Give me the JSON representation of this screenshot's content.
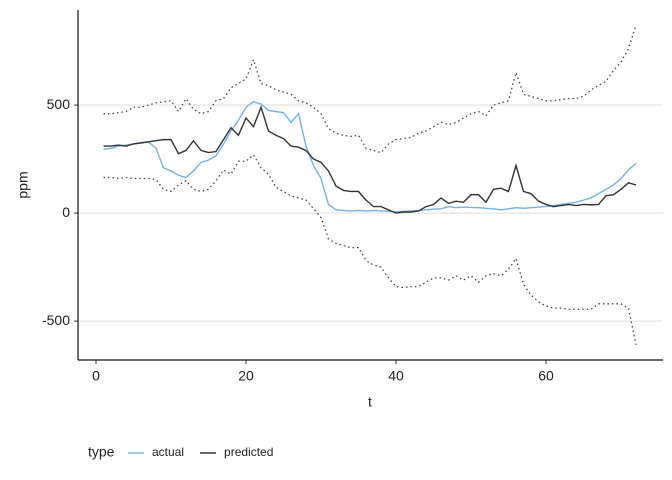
{
  "chart_data": {
    "type": "line",
    "x_label": "t",
    "y_label": "ppm",
    "legend_title": "type",
    "x": [
      1,
      2,
      3,
      4,
      5,
      6,
      7,
      8,
      9,
      10,
      11,
      12,
      13,
      14,
      15,
      16,
      17,
      18,
      19,
      20,
      21,
      22,
      23,
      24,
      25,
      26,
      27,
      28,
      29,
      30,
      31,
      32,
      33,
      34,
      35,
      36,
      37,
      38,
      39,
      40,
      41,
      42,
      43,
      44,
      45,
      46,
      47,
      48,
      49,
      50,
      51,
      52,
      53,
      54,
      55,
      56,
      57,
      58,
      59,
      60,
      61,
      62,
      63,
      64,
      65,
      66,
      67,
      68,
      69,
      70,
      71,
      72
    ],
    "series": [
      {
        "name": "actual",
        "color": "#74b2e6",
        "style": "solid",
        "values": [
          295,
          300,
          310,
          315,
          320,
          325,
          330,
          300,
          210,
          195,
          175,
          165,
          195,
          235,
          245,
          265,
          320,
          380,
          430,
          490,
          515,
          505,
          475,
          470,
          465,
          420,
          460,
          310,
          220,
          160,
          40,
          15,
          12,
          10,
          12,
          10,
          12,
          10,
          8,
          6,
          8,
          10,
          12,
          15,
          18,
          20,
          30,
          25,
          28,
          26,
          25,
          22,
          20,
          15,
          20,
          25,
          22,
          25,
          28,
          30,
          35,
          40,
          45,
          50,
          60,
          70,
          90,
          110,
          130,
          160,
          200,
          230
        ]
      },
      {
        "name": "predicted",
        "color": "#333333",
        "style": "solid",
        "values": [
          310,
          310,
          315,
          310,
          320,
          325,
          330,
          335,
          340,
          340,
          275,
          290,
          335,
          290,
          280,
          285,
          340,
          395,
          360,
          440,
          400,
          490,
          380,
          360,
          345,
          310,
          305,
          290,
          250,
          235,
          195,
          125,
          105,
          100,
          100,
          60,
          30,
          30,
          15,
          0,
          5,
          5,
          10,
          30,
          40,
          70,
          45,
          55,
          50,
          85,
          85,
          50,
          110,
          115,
          100,
          220,
          100,
          90,
          55,
          40,
          30,
          35,
          40,
          35,
          40,
          38,
          40,
          80,
          85,
          110,
          140,
          130
        ]
      },
      {
        "color": "#444444",
        "style": "dotted",
        "values": [
          460,
          460,
          465,
          470,
          490,
          490,
          500,
          510,
          515,
          520,
          470,
          530,
          480,
          460,
          470,
          520,
          530,
          580,
          600,
          620,
          710,
          600,
          590,
          570,
          560,
          550,
          520,
          510,
          490,
          460,
          390,
          370,
          360,
          355,
          360,
          300,
          290,
          280,
          320,
          340,
          345,
          350,
          370,
          380,
          400,
          420,
          410,
          420,
          440,
          460,
          470,
          450,
          500,
          510,
          520,
          650,
          550,
          540,
          530,
          520,
          520,
          525,
          530,
          530,
          540,
          570,
          590,
          610,
          660,
          700,
          760,
          870
        ]
      },
      {
        "color": "#444444",
        "style": "dotted",
        "values": [
          165,
          165,
          160,
          165,
          160,
          160,
          160,
          155,
          110,
          100,
          130,
          150,
          110,
          100,
          110,
          150,
          200,
          180,
          240,
          240,
          270,
          210,
          180,
          120,
          100,
          80,
          70,
          60,
          20,
          -20,
          -120,
          -140,
          -150,
          -160,
          -160,
          -220,
          -240,
          -250,
          -300,
          -340,
          -345,
          -340,
          -340,
          -320,
          -300,
          -300,
          -310,
          -290,
          -310,
          -290,
          -320,
          -290,
          -280,
          -290,
          -260,
          -210,
          -330,
          -380,
          -410,
          -430,
          -440,
          -440,
          -445,
          -445,
          -445,
          -445,
          -420,
          -420,
          -420,
          -420,
          -440,
          -610
        ]
      }
    ],
    "xlim": [
      -2.4,
      75.6
    ],
    "xticks": [
      0,
      20,
      40,
      60
    ],
    "ylim": [
      -680,
      940
    ],
    "yticks": [
      -500,
      0,
      500
    ],
    "grid": true,
    "legend": "bottom"
  }
}
